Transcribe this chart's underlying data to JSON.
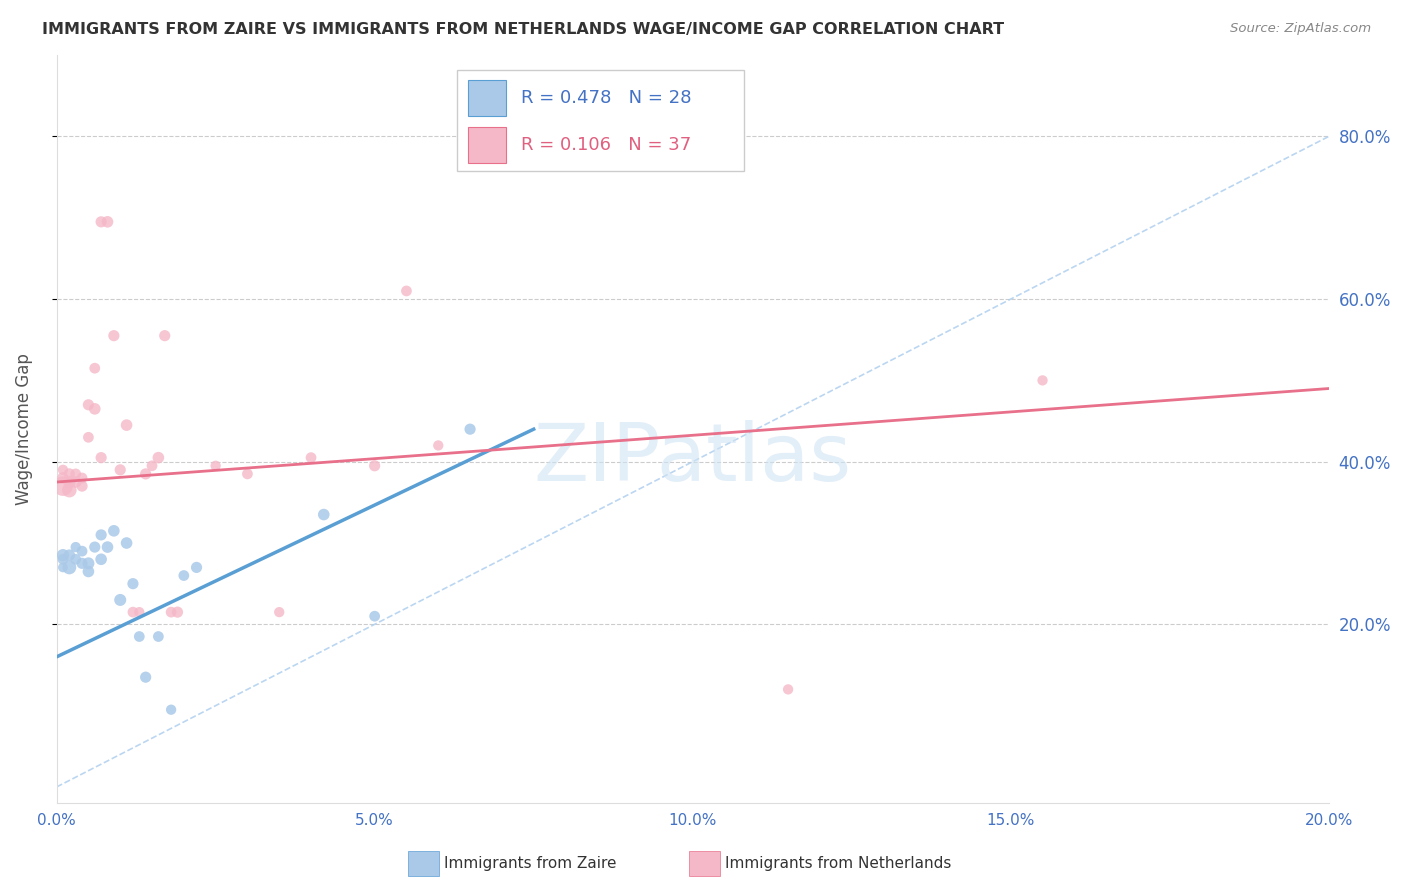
{
  "title": "IMMIGRANTS FROM ZAIRE VS IMMIGRANTS FROM NETHERLANDS WAGE/INCOME GAP CORRELATION CHART",
  "source": "Source: ZipAtlas.com",
  "ylabel": "Wage/Income Gap",
  "legend_label1": "Immigrants from Zaire",
  "legend_label2": "Immigrants from Netherlands",
  "legend_r1": "R = 0.478",
  "legend_n1": "N = 28",
  "legend_r2": "R = 0.106",
  "legend_n2": "N = 37",
  "color_blue": "#aac9e8",
  "color_pink": "#f5b8c8",
  "color_blue_line": "#5a9fd4",
  "color_pink_line": "#e8708a",
  "xlim": [
    0.0,
    0.2
  ],
  "ylim": [
    -0.02,
    0.9
  ],
  "yticks": [
    0.2,
    0.4,
    0.6,
    0.8
  ],
  "xticks": [
    0.0,
    0.05,
    0.1,
    0.15,
    0.2
  ],
  "watermark": "ZIPatlas",
  "blue_scatter_x": [
    0.001,
    0.001,
    0.001,
    0.002,
    0.002,
    0.003,
    0.003,
    0.004,
    0.004,
    0.005,
    0.005,
    0.006,
    0.007,
    0.007,
    0.008,
    0.009,
    0.01,
    0.011,
    0.012,
    0.013,
    0.014,
    0.016,
    0.018,
    0.02,
    0.022,
    0.042,
    0.05,
    0.065
  ],
  "blue_scatter_y": [
    0.27,
    0.28,
    0.285,
    0.27,
    0.285,
    0.28,
    0.295,
    0.275,
    0.29,
    0.265,
    0.275,
    0.295,
    0.28,
    0.31,
    0.295,
    0.315,
    0.23,
    0.3,
    0.25,
    0.185,
    0.135,
    0.185,
    0.095,
    0.26,
    0.27,
    0.335,
    0.21,
    0.44
  ],
  "blue_scatter_sizes": [
    50,
    60,
    80,
    100,
    70,
    60,
    55,
    65,
    60,
    70,
    75,
    65,
    70,
    65,
    70,
    70,
    75,
    70,
    65,
    60,
    65,
    60,
    55,
    60,
    65,
    70,
    60,
    65
  ],
  "pink_scatter_x": [
    0.001,
    0.001,
    0.001,
    0.002,
    0.002,
    0.002,
    0.003,
    0.003,
    0.004,
    0.004,
    0.005,
    0.005,
    0.006,
    0.006,
    0.007,
    0.007,
    0.008,
    0.009,
    0.01,
    0.011,
    0.012,
    0.013,
    0.014,
    0.015,
    0.016,
    0.017,
    0.018,
    0.019,
    0.025,
    0.03,
    0.035,
    0.04,
    0.05,
    0.055,
    0.06,
    0.115,
    0.155
  ],
  "pink_scatter_y": [
    0.37,
    0.38,
    0.39,
    0.365,
    0.375,
    0.385,
    0.375,
    0.385,
    0.37,
    0.38,
    0.43,
    0.47,
    0.465,
    0.515,
    0.405,
    0.695,
    0.695,
    0.555,
    0.39,
    0.445,
    0.215,
    0.215,
    0.385,
    0.395,
    0.405,
    0.555,
    0.215,
    0.215,
    0.395,
    0.385,
    0.215,
    0.405,
    0.395,
    0.61,
    0.42,
    0.12,
    0.5
  ],
  "pink_scatter_sizes": [
    200,
    70,
    55,
    110,
    80,
    65,
    70,
    60,
    65,
    60,
    60,
    65,
    70,
    60,
    65,
    65,
    70,
    65,
    65,
    70,
    60,
    55,
    65,
    60,
    70,
    65,
    60,
    65,
    55,
    60,
    55,
    60,
    65,
    60,
    55,
    55,
    55
  ],
  "blue_trend_x": [
    0.0,
    0.075
  ],
  "blue_trend_y": [
    0.16,
    0.44
  ],
  "pink_trend_x": [
    0.0,
    0.2
  ],
  "pink_trend_y": [
    0.375,
    0.49
  ],
  "ref_line_x": [
    0.0,
    0.2
  ],
  "ref_line_y": [
    0.0,
    0.8
  ]
}
